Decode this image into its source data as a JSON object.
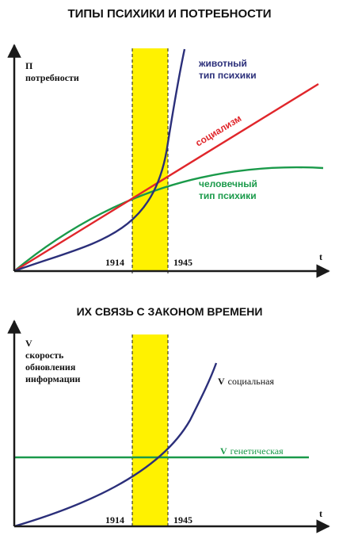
{
  "colors": {
    "axis": "#1a1a1a",
    "band": "#fff200",
    "animal": "#2b2f7a",
    "social": "#e0262b",
    "human": "#1a9a4a"
  },
  "top": {
    "title": "ТИПЫ ПСИХИКИ И ПОТРЕБНОСТИ",
    "y_axis_symbol": "П",
    "y_axis_label": "потребности",
    "x_axis_symbol": "t",
    "year_start": "1914",
    "year_end": "1945",
    "animal_label_1": "животный",
    "animal_label_2": "тип психики",
    "social_label": "социализм",
    "human_label_1": "человечный",
    "human_label_2": "тип психики"
  },
  "bottom": {
    "title": "ИХ СВЯЗЬ С ЗАКОНОМ ВРЕМЕНИ",
    "y_axis_symbol": "V",
    "y_axis_label_1": "скорость",
    "y_axis_label_2": "обновления",
    "y_axis_label_3": "информации",
    "x_axis_symbol": "t",
    "year_start": "1914",
    "year_end": "1945",
    "social_v_symbol": "V",
    "social_v_text": "социальная",
    "genetic_v_symbol": "V",
    "genetic_v_text": "генетическая"
  }
}
